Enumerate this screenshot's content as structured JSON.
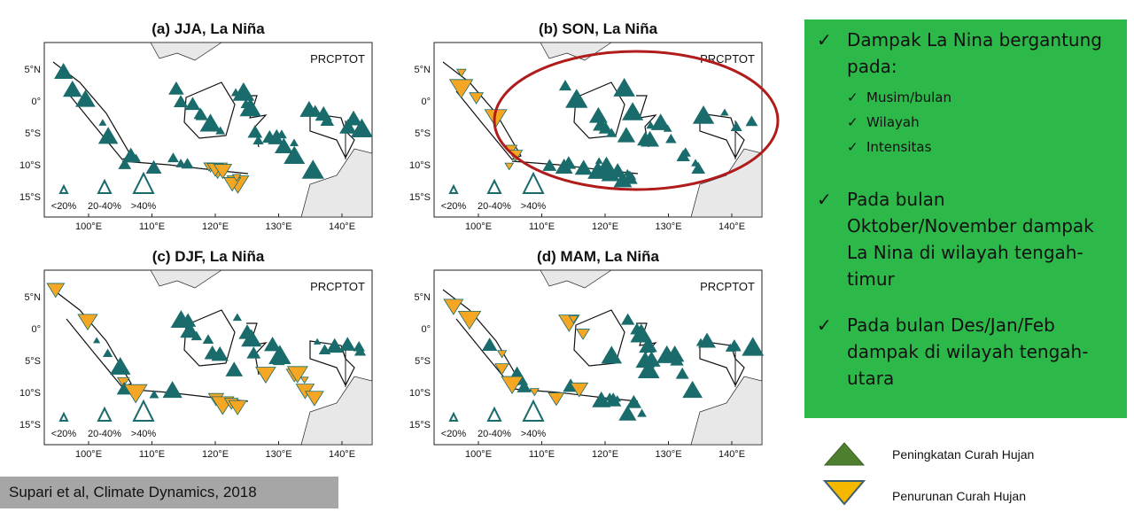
{
  "maps": [
    {
      "title": "(a) JJA, La Niña",
      "index": "PRCPTOT"
    },
    {
      "title": "(b) SON, La Niña",
      "index": "PRCPTOT"
    },
    {
      "title": "(c) DJF, La Niña",
      "index": "PRCPTOT"
    },
    {
      "title": "(d) MAM, La Niña",
      "index": "PRCPTOT"
    }
  ],
  "lat_labels": [
    "5°N",
    "0°",
    "5°S",
    "10°S",
    "15°S"
  ],
  "lon_labels": [
    "100°E",
    "110°E",
    "120°E",
    "130°E",
    "140°E"
  ],
  "size_legend": [
    "<20%",
    "20-40%",
    ">40%"
  ],
  "notes": [
    {
      "text": "Dampak La Nina bergantung pada:",
      "sub": [
        "Musim/bulan",
        "Wilayah",
        "Intensitas"
      ]
    },
    {
      "text": "Pada bulan Oktober/November dampak La Nina di wilayah tengah-timur"
    },
    {
      "text": "Pada bulan Des/Jan/Feb dampak di wilayah tengah-utara"
    }
  ],
  "legend": [
    "Peningkatan Curah Hujan",
    "Penurunan Curah Hujan"
  ],
  "citation": "Supari et al, Climate Dynamics, 2018"
}
